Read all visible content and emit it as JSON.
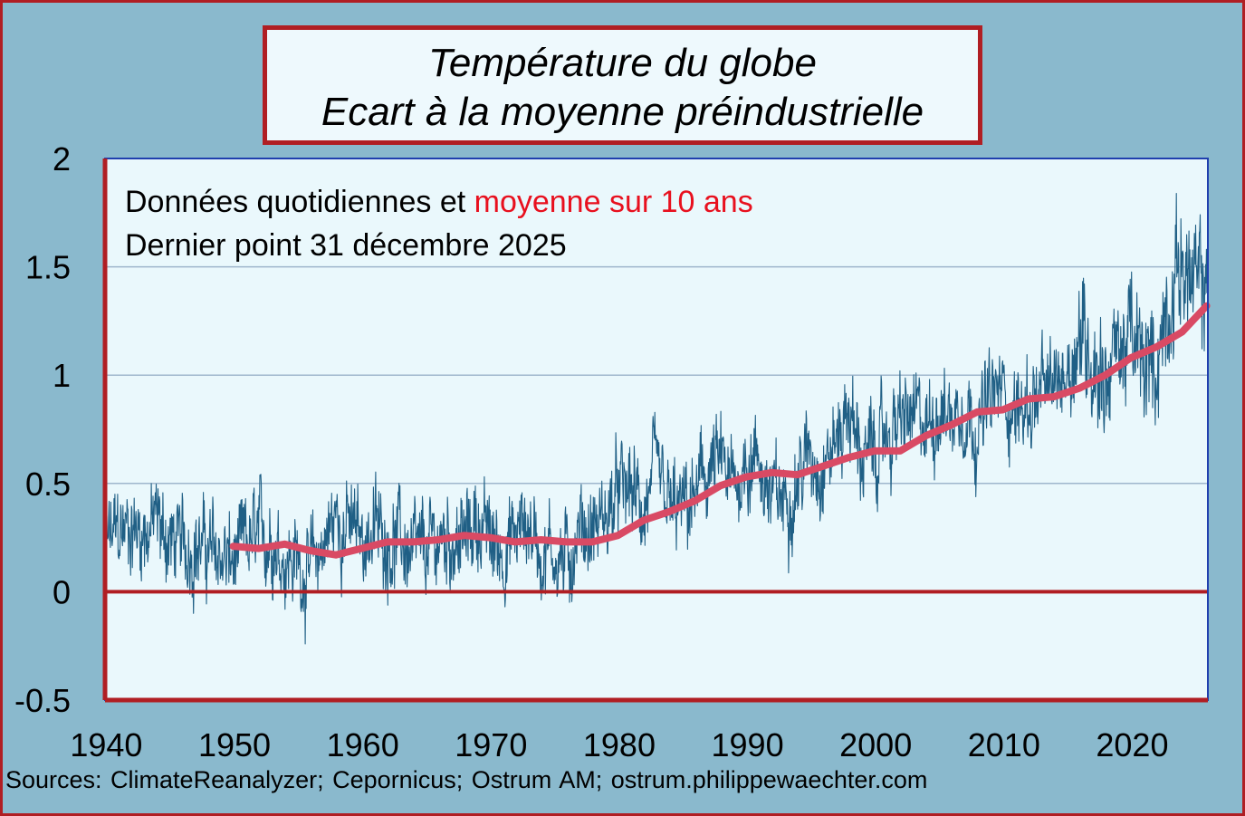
{
  "chart_data": {
    "type": "line",
    "title": "Température du globe",
    "subtitle": "Ecart à la moyenne préindustrielle",
    "annotation": {
      "line1_prefix": "Données quotidiennes et ",
      "line1_highlight": "moyenne sur 10 ans",
      "line2": "Dernier point 31 décembre 2025"
    },
    "xlabel": "",
    "ylabel": "",
    "xlim": [
      1940,
      2026
    ],
    "ylim": [
      -0.5,
      2
    ],
    "x_ticks": [
      "1940",
      "1950",
      "1960",
      "1970",
      "1980",
      "1990",
      "2000",
      "2010",
      "2020"
    ],
    "y_ticks": [
      "2",
      "1.5",
      "1",
      "0.5",
      "0",
      "-0.5"
    ],
    "grid": true,
    "colors": {
      "daily": "#1f5f85",
      "moving_average": "#d94a64",
      "zero_line": "#b01e23",
      "frame": "#b01e23",
      "plot_background": "#eaf8fc",
      "outer_background": "#8ab9cd",
      "highlight_text": "#e8101e"
    },
    "series": [
      {
        "name": "Données quotidiennes",
        "style": "thin-line",
        "x": [
          1940,
          1941,
          1942,
          1943,
          1944,
          1945,
          1946,
          1947,
          1948,
          1949,
          1950,
          1951,
          1952,
          1953,
          1954,
          1955,
          1956,
          1957,
          1958,
          1959,
          1960,
          1961,
          1962,
          1963,
          1964,
          1965,
          1966,
          1967,
          1968,
          1969,
          1970,
          1971,
          1972,
          1973,
          1974,
          1975,
          1976,
          1977,
          1978,
          1979,
          1980,
          1981,
          1982,
          1983,
          1984,
          1985,
          1986,
          1987,
          1988,
          1989,
          1990,
          1991,
          1992,
          1993,
          1994,
          1995,
          1996,
          1997,
          1998,
          1999,
          2000,
          2001,
          2002,
          2003,
          2004,
          2005,
          2006,
          2007,
          2008,
          2009,
          2010,
          2011,
          2012,
          2013,
          2014,
          2015,
          2016,
          2017,
          2018,
          2019,
          2020,
          2021,
          2022,
          2023,
          2024,
          2025
        ],
        "y": [
          0.22,
          0.27,
          0.3,
          0.28,
          0.32,
          0.24,
          0.2,
          0.23,
          0.19,
          0.17,
          0.12,
          0.21,
          0.24,
          0.27,
          0.17,
          0.14,
          0.08,
          0.22,
          0.34,
          0.3,
          0.25,
          0.29,
          0.25,
          0.24,
          0.15,
          0.17,
          0.24,
          0.26,
          0.22,
          0.34,
          0.24,
          0.19,
          0.25,
          0.33,
          0.18,
          0.2,
          0.12,
          0.3,
          0.28,
          0.34,
          0.45,
          0.47,
          0.36,
          0.53,
          0.37,
          0.36,
          0.42,
          0.56,
          0.58,
          0.46,
          0.62,
          0.6,
          0.42,
          0.43,
          0.53,
          0.64,
          0.6,
          0.69,
          0.85,
          0.62,
          0.63,
          0.72,
          0.78,
          0.8,
          0.74,
          0.86,
          0.81,
          0.87,
          0.76,
          0.88,
          0.93,
          0.83,
          0.87,
          0.91,
          0.93,
          1.05,
          1.2,
          1.1,
          1.0,
          1.12,
          1.16,
          1.02,
          1.06,
          1.36,
          1.55,
          1.38
        ]
      },
      {
        "name": "moyenne sur 10 ans",
        "style": "thick-line",
        "x": [
          1950,
          1952,
          1954,
          1956,
          1958,
          1960,
          1962,
          1964,
          1966,
          1968,
          1970,
          1972,
          1974,
          1976,
          1978,
          1980,
          1982,
          1984,
          1986,
          1988,
          1990,
          1992,
          1994,
          1996,
          1998,
          2000,
          2002,
          2004,
          2006,
          2008,
          2010,
          2012,
          2014,
          2016,
          2018,
          2020,
          2022,
          2024,
          2025.9
        ],
        "y": [
          0.21,
          0.2,
          0.22,
          0.19,
          0.17,
          0.2,
          0.23,
          0.23,
          0.24,
          0.26,
          0.25,
          0.23,
          0.24,
          0.23,
          0.23,
          0.26,
          0.33,
          0.37,
          0.42,
          0.49,
          0.53,
          0.55,
          0.54,
          0.58,
          0.62,
          0.65,
          0.65,
          0.72,
          0.77,
          0.83,
          0.84,
          0.89,
          0.9,
          0.94,
          1.0,
          1.08,
          1.13,
          1.2,
          1.32
        ]
      }
    ]
  },
  "sources": "Sources: ClimateReanalyzer; Cepornicus; Ostrum AM; ostrum.philippewaechter.com"
}
